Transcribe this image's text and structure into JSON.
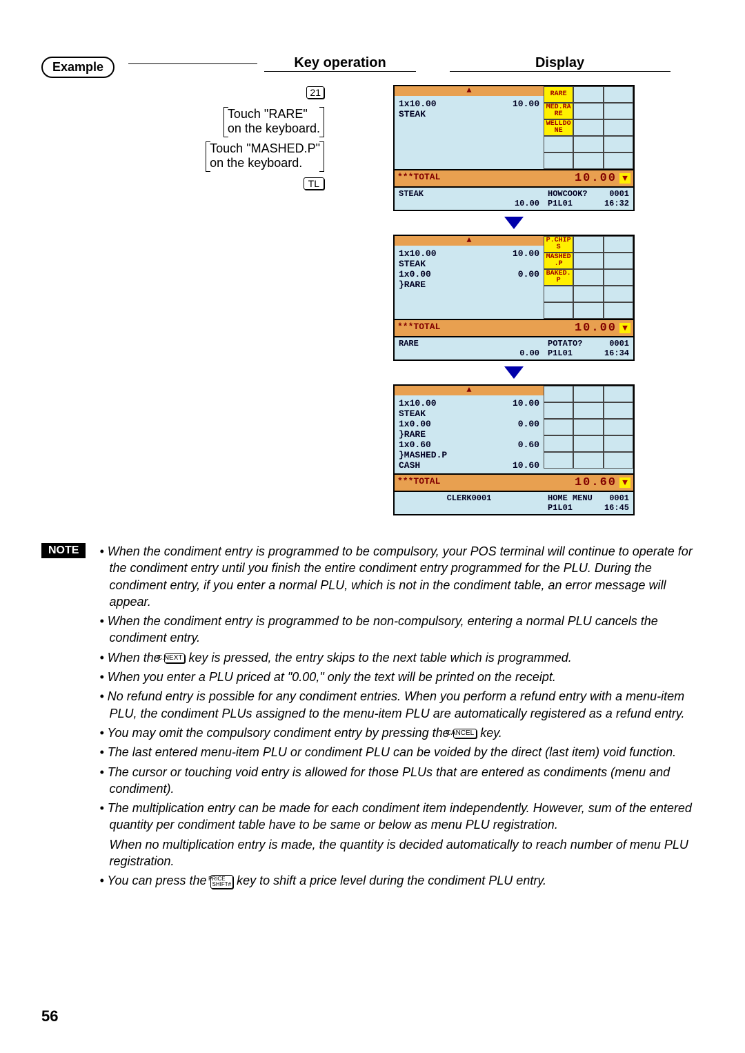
{
  "badges": {
    "example": "Example",
    "note": "NOTE"
  },
  "headings": {
    "keyop": "Key operation",
    "display": "Display"
  },
  "keyop": {
    "key21": "21",
    "bracket1_l1": "Touch \"RARE\"",
    "bracket1_l2": "on the keyboard.",
    "bracket2_l1": "Touch \"MASHED.P\"",
    "bracket2_l2": "on the keyboard.",
    "tl": "TL"
  },
  "pos1": {
    "scroll_sym": "▲",
    "lines": [
      {
        "l": "1x10.00",
        "r": "10.00"
      },
      {
        "l": "STEAK",
        "r": ""
      }
    ],
    "buttons": [
      "RARE",
      "",
      "",
      "MED.RA\nRE",
      "",
      "",
      "WELLDO\nNE",
      "",
      "",
      "",
      "",
      "",
      "",
      "",
      ""
    ],
    "yellow_idx": [
      0,
      3,
      6
    ],
    "total_label": "***TOTAL",
    "total_amount": "10.00",
    "status_left_l1": "STEAK",
    "status_left_l2r": "10.00",
    "status_r1a": "HOWCOOK?",
    "status_r1b": "0001",
    "status_r2a": "P1L01",
    "status_r2b": "16:32"
  },
  "pos2": {
    "scroll_sym": "▲",
    "lines": [
      {
        "l": "1x10.00",
        "r": "10.00"
      },
      {
        "l": "STEAK",
        "r": ""
      },
      {
        "l": "1x0.00",
        "r": "0.00"
      },
      {
        "l": "}RARE",
        "r": ""
      }
    ],
    "buttons": [
      "P.CHIP\nS",
      "",
      "",
      "MASHED\n.P",
      "",
      "",
      "BAKED.\nP",
      "",
      "",
      "",
      "",
      "",
      "",
      "",
      ""
    ],
    "yellow_idx": [
      0,
      3,
      6
    ],
    "total_label": "***TOTAL",
    "total_amount": "10.00",
    "status_left_l1": "RARE",
    "status_left_l2r": "0.00",
    "status_r1a": "POTATO?",
    "status_r1b": "0001",
    "status_r2a": "P1L01",
    "status_r2b": "16:34"
  },
  "pos3": {
    "scroll_sym": "▲",
    "lines": [
      {
        "l": "1x10.00",
        "r": "10.00"
      },
      {
        "l": "STEAK",
        "r": ""
      },
      {
        "l": "1x0.00",
        "r": "0.00"
      },
      {
        "l": "}RARE",
        "r": ""
      },
      {
        "l": "1x0.60",
        "r": "0.60"
      },
      {
        "l": "}MASHED.P",
        "r": ""
      },
      {
        "l": "CASH",
        "r": "10.60"
      }
    ],
    "buttons": [
      "",
      "",
      "",
      "",
      "",
      "",
      "",
      "",
      "",
      "",
      "",
      "",
      "",
      "",
      ""
    ],
    "yellow_idx": [],
    "total_label": "***TOTAL",
    "total_amount": "10.60",
    "status_left_l1c": "CLERK0001",
    "status_r1a": "HOME MENU",
    "status_r1b": "0001",
    "status_r2a": "P1L01",
    "status_r2b": "16:45"
  },
  "keys": {
    "cnext": "C.NEXT",
    "cancel": "CANCEL",
    "price_shift_l1": "PRICE",
    "price_shift_l2": "SHIFT#"
  },
  "notes": {
    "n1": "• When the condiment entry is programmed to be compulsory, your POS terminal will continue to operate for the condiment entry until you finish the entire condiment entry programmed for the PLU.  During the condiment entry, if you enter a normal PLU, which is not in the condiment table, an error message will appear.",
    "n2": "• When the condiment entry is programmed to be non-compulsory, entering a normal PLU cancels the condiment entry.",
    "n3a": "• When the ",
    "n3b": " key is pressed, the entry skips to the next table which is programmed.",
    "n4": "• When you enter a PLU priced at \"0.00,\" only the text will be printed on the receipt.",
    "n5": "• No refund entry is possible for any condiment entries.  When you perform a refund entry with a menu-item PLU, the condiment PLUs assigned to the menu-item PLU are automatically registered as a refund entry.",
    "n6a": "• You may omit the compulsory condiment entry by pressing the ",
    "n6b": " key.",
    "n7": "• The last entered menu-item PLU or condiment PLU can be voided by the direct (last item) void function.",
    "n8": "• The cursor or touching void entry is allowed for those PLUs that are entered as condiments (menu and condiment).",
    "n9": "• The multiplication entry can be made for each condiment item independently.  However, sum of the entered quantity per condiment table have to be same or below as menu PLU registration.",
    "n9b": "When no multiplication entry is made, the quantity is decided automatically to reach number of menu PLU registration.",
    "n10a": "• You can press the ",
    "n10b": " key to shift a price level during the condiment PLU entry."
  },
  "pagenum": "56",
  "colors": {
    "pos_bg": "#cde7f0",
    "orange": "#e8a050",
    "yellow": "#fff000",
    "darkred": "#a00000",
    "arrow": "#0000aa"
  }
}
